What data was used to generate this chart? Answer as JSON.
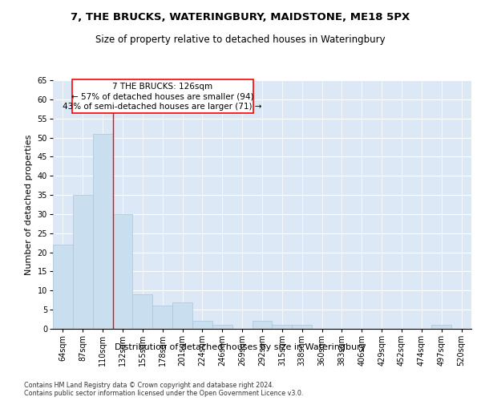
{
  "title": "7, THE BRUCKS, WATERINGBURY, MAIDSTONE, ME18 5PX",
  "subtitle": "Size of property relative to detached houses in Wateringbury",
  "xlabel": "Distribution of detached houses by size in Wateringbury",
  "ylabel": "Number of detached properties",
  "bar_color": "#c9dff0",
  "bar_edge_color": "#aac4dc",
  "background_color": "#dce8f5",
  "grid_color": "white",
  "categories": [
    "64sqm",
    "87sqm",
    "110sqm",
    "132sqm",
    "155sqm",
    "178sqm",
    "201sqm",
    "224sqm",
    "246sqm",
    "269sqm",
    "292sqm",
    "315sqm",
    "338sqm",
    "360sqm",
    "383sqm",
    "406sqm",
    "429sqm",
    "452sqm",
    "474sqm",
    "497sqm",
    "520sqm"
  ],
  "values": [
    22,
    35,
    51,
    30,
    9,
    6,
    7,
    2,
    1,
    0,
    2,
    1,
    1,
    0,
    0,
    0,
    0,
    0,
    0,
    1,
    0
  ],
  "ylim": [
    0,
    65
  ],
  "yticks": [
    0,
    5,
    10,
    15,
    20,
    25,
    30,
    35,
    40,
    45,
    50,
    55,
    60,
    65
  ],
  "ref_line_x": 2.5,
  "annotation_line1": "7 THE BRUCKS: 126sqm",
  "annotation_line2": "← 57% of detached houses are smaller (94)",
  "annotation_line3": "43% of semi-detached houses are larger (71) →",
  "footer_line1": "Contains HM Land Registry data © Crown copyright and database right 2024.",
  "footer_line2": "Contains public sector information licensed under the Open Government Licence v3.0.",
  "title_fontsize": 9.5,
  "subtitle_fontsize": 8.5,
  "tick_fontsize": 7,
  "ylabel_fontsize": 8,
  "xlabel_fontsize": 8,
  "annotation_fontsize": 7.5,
  "footer_fontsize": 5.8
}
